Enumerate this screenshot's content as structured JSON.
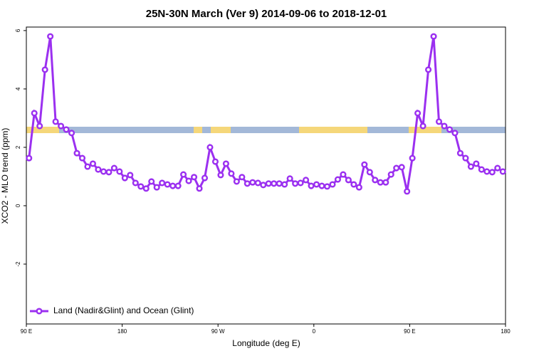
{
  "chart_data": {
    "type": "line",
    "title": "25N-30N March (Ver 9)   2014-09-06 to 2018-12-01",
    "x_label": "Longitude (deg E)",
    "y_label": "XCO2 - MLO trend (ppm)",
    "x": [
      92.5,
      97.5,
      102.5,
      107.5,
      112.5,
      117.5,
      122.5,
      127.5,
      132.5,
      137.5,
      142.5,
      147.5,
      152.5,
      157.5,
      162.5,
      167.5,
      172.5,
      177.5,
      182.5,
      187.5,
      192.5,
      197.5,
      202.5,
      207.5,
      212.5,
      217.5,
      222.5,
      227.5,
      232.5,
      237.5,
      242.5,
      247.5,
      252.5,
      257.5,
      262.5,
      267.5,
      272.5,
      277.5,
      282.5,
      287.5,
      292.5,
      297.5,
      302.5,
      307.5,
      312.5,
      317.5,
      322.5,
      327.5,
      332.5,
      337.5,
      342.5,
      347.5,
      352.5,
      357.5,
      362.5,
      367.5,
      372.5,
      377.5,
      382.5,
      387.5,
      392.5,
      397.5,
      402.5,
      407.5,
      412.5,
      417.5,
      422.5,
      427.5,
      432.5,
      437.5,
      442.5,
      447.5,
      452.5,
      457.5,
      462.5,
      467.5,
      472.5,
      477.5,
      482.5,
      487.5,
      492.5,
      497.5,
      502.5,
      507.5,
      512.5,
      517.5,
      522.5,
      527.5,
      532.5,
      537.5
    ],
    "series": [
      {
        "name": "Land (Nadir&Glint) and Ocean (Glint)",
        "color": "#9b30f0",
        "values": [
          1.63,
          3.17,
          2.73,
          4.66,
          5.8,
          2.88,
          2.73,
          2.61,
          2.49,
          1.8,
          1.63,
          1.34,
          1.44,
          1.24,
          1.17,
          1.15,
          1.29,
          1.17,
          0.95,
          1.05,
          0.78,
          0.66,
          0.59,
          0.83,
          0.63,
          0.78,
          0.73,
          0.68,
          0.68,
          1.07,
          0.85,
          0.98,
          0.59,
          0.95,
          2.0,
          1.51,
          1.05,
          1.44,
          1.1,
          0.83,
          0.98,
          0.76,
          0.8,
          0.78,
          0.71,
          0.76,
          0.76,
          0.76,
          0.73,
          0.93,
          0.76,
          0.78,
          0.88,
          0.68,
          0.73,
          0.68,
          0.66,
          0.73,
          0.9,
          1.07,
          0.88,
          0.73,
          0.63,
          1.41,
          1.15,
          0.88,
          0.8,
          0.8,
          1.07,
          1.29,
          1.32,
          0.49,
          1.63,
          3.17,
          2.73,
          4.66,
          5.8,
          2.88,
          2.73,
          2.61,
          2.49,
          1.8,
          1.63,
          1.34,
          1.44,
          1.24,
          1.17,
          1.15,
          1.29,
          1.17
        ]
      }
    ],
    "xlim": [
      90,
      540
    ],
    "xticks": [
      {
        "value": 90,
        "label": "90 E"
      },
      180,
      {
        "value": 270,
        "label": "90 W"
      },
      {
        "value": 360,
        "label": "0"
      },
      {
        "value": 450,
        "label": "90 E"
      },
      {
        "value": 540,
        "label": "180"
      }
    ],
    "ylim": [
      -4.05,
      6.12
    ],
    "yticks": [
      6,
      4,
      2,
      0,
      -2
    ],
    "legend": "bottom-left"
  }
}
